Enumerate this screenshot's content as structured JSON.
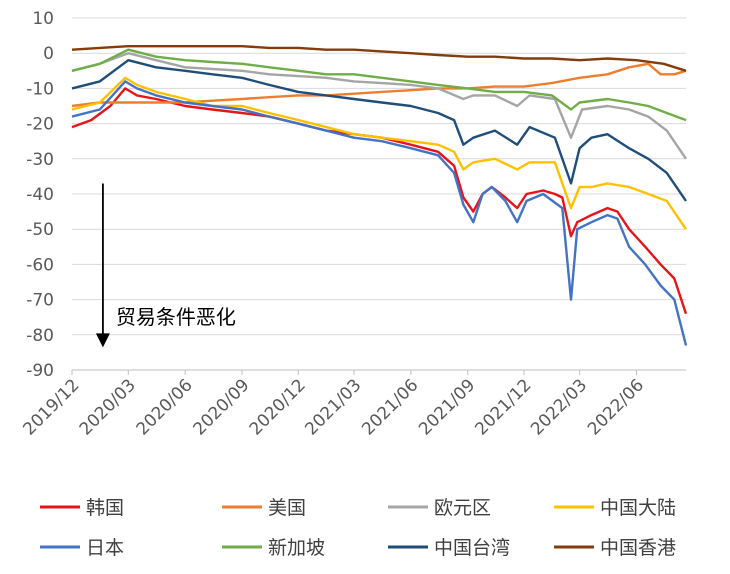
{
  "chart_data": {
    "type": "line",
    "title": "",
    "xlabel": "",
    "ylabel": "",
    "ylim": [
      -90,
      10
    ],
    "yticks": [
      10,
      0,
      -10,
      -20,
      -30,
      -40,
      -50,
      -60,
      -70,
      -80,
      -90
    ],
    "x_range": [
      "2019-12-01",
      "2022-08-20"
    ],
    "xticks": [
      {
        "date": "2019-12-01",
        "label": "2019/12"
      },
      {
        "date": "2020-03-01",
        "label": "2020/03"
      },
      {
        "date": "2020-06-01",
        "label": "2020/06"
      },
      {
        "date": "2020-09-01",
        "label": "2020/09"
      },
      {
        "date": "2020-12-01",
        "label": "2020/12"
      },
      {
        "date": "2021-03-01",
        "label": "2021/03"
      },
      {
        "date": "2021-06-01",
        "label": "2021/06"
      },
      {
        "date": "2021-09-01",
        "label": "2021/09"
      },
      {
        "date": "2021-12-01",
        "label": "2021/12"
      },
      {
        "date": "2022-03-01",
        "label": "2022/03"
      },
      {
        "date": "2022-06-01",
        "label": "2022/06"
      }
    ],
    "grid": "horizontal",
    "legend_position": "bottom",
    "annotation": {
      "text": "贸易条件恶化",
      "arrow": "down",
      "from_y": -37,
      "to_y": -83,
      "date": "2020-01-20"
    },
    "series": [
      {
        "name": "韩国",
        "color": "#E8141B",
        "points": [
          [
            "2019-12-01",
            -21
          ],
          [
            "2020-01-01",
            -19
          ],
          [
            "2020-02-01",
            -15
          ],
          [
            "2020-02-25",
            -10
          ],
          [
            "2020-03-15",
            -12
          ],
          [
            "2020-04-15",
            -13
          ],
          [
            "2020-06-01",
            -15
          ],
          [
            "2020-07-15",
            -16
          ],
          [
            "2020-09-01",
            -17
          ],
          [
            "2020-10-15",
            -18
          ],
          [
            "2020-12-01",
            -20
          ],
          [
            "2021-01-15",
            -22
          ],
          [
            "2021-03-01",
            -23
          ],
          [
            "2021-04-15",
            -24
          ],
          [
            "2021-06-01",
            -26
          ],
          [
            "2021-07-15",
            -28
          ],
          [
            "2021-08-10",
            -32
          ],
          [
            "2021-08-25",
            -41
          ],
          [
            "2021-09-10",
            -45
          ],
          [
            "2021-09-25",
            -40
          ],
          [
            "2021-10-10",
            -38
          ],
          [
            "2021-11-01",
            -41
          ],
          [
            "2021-11-20",
            -44
          ],
          [
            "2021-12-05",
            -40
          ],
          [
            "2022-01-01",
            -39
          ],
          [
            "2022-01-20",
            -40
          ],
          [
            "2022-02-01",
            -41
          ],
          [
            "2022-02-15",
            -52
          ],
          [
            "2022-02-25",
            -48
          ],
          [
            "2022-03-20",
            -46
          ],
          [
            "2022-04-15",
            -44
          ],
          [
            "2022-05-01",
            -45
          ],
          [
            "2022-05-20",
            -50
          ],
          [
            "2022-06-15",
            -55
          ],
          [
            "2022-07-10",
            -60
          ],
          [
            "2022-08-01",
            -64
          ],
          [
            "2022-08-20",
            -74
          ]
        ]
      },
      {
        "name": "美国",
        "color": "#ED7D31",
        "points": [
          [
            "2019-12-01",
            -15
          ],
          [
            "2020-01-15",
            -14
          ],
          [
            "2020-03-01",
            -14
          ],
          [
            "2020-04-15",
            -14
          ],
          [
            "2020-06-01",
            -14
          ],
          [
            "2020-07-15",
            -13.5
          ],
          [
            "2020-09-01",
            -13
          ],
          [
            "2020-10-15",
            -12.5
          ],
          [
            "2020-12-01",
            -12
          ],
          [
            "2021-01-15",
            -12
          ],
          [
            "2021-03-01",
            -11.5
          ],
          [
            "2021-04-15",
            -11
          ],
          [
            "2021-06-01",
            -10.5
          ],
          [
            "2021-07-15",
            -10
          ],
          [
            "2021-09-01",
            -10
          ],
          [
            "2021-10-15",
            -9.5
          ],
          [
            "2021-12-01",
            -9.5
          ],
          [
            "2022-01-15",
            -8.5
          ],
          [
            "2022-03-01",
            -7
          ],
          [
            "2022-04-15",
            -6
          ],
          [
            "2022-05-20",
            -4
          ],
          [
            "2022-06-20",
            -3
          ],
          [
            "2022-07-10",
            -6
          ],
          [
            "2022-08-01",
            -6
          ],
          [
            "2022-08-20",
            -5
          ]
        ]
      },
      {
        "name": "欧元区",
        "color": "#A5A5A5",
        "points": [
          [
            "2019-12-01",
            -5
          ],
          [
            "2020-01-15",
            -3
          ],
          [
            "2020-03-01",
            0
          ],
          [
            "2020-04-15",
            -2
          ],
          [
            "2020-06-01",
            -4
          ],
          [
            "2020-07-15",
            -4.5
          ],
          [
            "2020-09-01",
            -5
          ],
          [
            "2020-10-15",
            -6
          ],
          [
            "2020-12-01",
            -6.5
          ],
          [
            "2021-01-15",
            -7
          ],
          [
            "2021-03-01",
            -8
          ],
          [
            "2021-04-15",
            -8.5
          ],
          [
            "2021-06-01",
            -9
          ],
          [
            "2021-07-15",
            -10
          ],
          [
            "2021-08-25",
            -13
          ],
          [
            "2021-09-10",
            -12
          ],
          [
            "2021-10-15",
            -12
          ],
          [
            "2021-11-20",
            -15
          ],
          [
            "2021-12-10",
            -12
          ],
          [
            "2022-01-20",
            -13
          ],
          [
            "2022-02-15",
            -24
          ],
          [
            "2022-03-05",
            -16
          ],
          [
            "2022-04-15",
            -15
          ],
          [
            "2022-05-20",
            -16
          ],
          [
            "2022-06-20",
            -18
          ],
          [
            "2022-07-20",
            -22
          ],
          [
            "2022-08-20",
            -30
          ]
        ]
      },
      {
        "name": "中国大陆",
        "color": "#FFC000",
        "points": [
          [
            "2019-12-01",
            -16
          ],
          [
            "2020-01-15",
            -14
          ],
          [
            "2020-02-25",
            -7
          ],
          [
            "2020-03-15",
            -9
          ],
          [
            "2020-04-15",
            -11
          ],
          [
            "2020-06-01",
            -13
          ],
          [
            "2020-07-15",
            -15
          ],
          [
            "2020-09-01",
            -15
          ],
          [
            "2020-10-15",
            -17
          ],
          [
            "2020-12-01",
            -19
          ],
          [
            "2021-01-15",
            -21
          ],
          [
            "2021-03-01",
            -23
          ],
          [
            "2021-04-15",
            -24
          ],
          [
            "2021-06-01",
            -25
          ],
          [
            "2021-07-15",
            -26
          ],
          [
            "2021-08-10",
            -28
          ],
          [
            "2021-08-25",
            -33
          ],
          [
            "2021-09-10",
            -31
          ],
          [
            "2021-10-15",
            -30
          ],
          [
            "2021-11-20",
            -33
          ],
          [
            "2021-12-10",
            -31
          ],
          [
            "2022-01-20",
            -31
          ],
          [
            "2022-02-15",
            -44
          ],
          [
            "2022-03-01",
            -38
          ],
          [
            "2022-03-20",
            -38
          ],
          [
            "2022-04-15",
            -37
          ],
          [
            "2022-05-20",
            -38
          ],
          [
            "2022-06-20",
            -40
          ],
          [
            "2022-07-20",
            -42
          ],
          [
            "2022-08-20",
            -50
          ]
        ]
      },
      {
        "name": "日本",
        "color": "#4472C4",
        "points": [
          [
            "2019-12-01",
            -18
          ],
          [
            "2020-01-15",
            -16
          ],
          [
            "2020-02-25",
            -8
          ],
          [
            "2020-03-15",
            -10
          ],
          [
            "2020-04-15",
            -12
          ],
          [
            "2020-06-01",
            -14
          ],
          [
            "2020-07-15",
            -15
          ],
          [
            "2020-09-01",
            -16
          ],
          [
            "2020-10-15",
            -18
          ],
          [
            "2020-12-01",
            -20
          ],
          [
            "2021-01-15",
            -22
          ],
          [
            "2021-03-01",
            -24
          ],
          [
            "2021-04-15",
            -25
          ],
          [
            "2021-06-01",
            -27
          ],
          [
            "2021-07-15",
            -29
          ],
          [
            "2021-08-10",
            -34
          ],
          [
            "2021-08-25",
            -43
          ],
          [
            "2021-09-10",
            -48
          ],
          [
            "2021-09-25",
            -40
          ],
          [
            "2021-10-10",
            -38
          ],
          [
            "2021-11-01",
            -42
          ],
          [
            "2021-11-20",
            -48
          ],
          [
            "2021-12-05",
            -42
          ],
          [
            "2022-01-01",
            -40
          ],
          [
            "2022-02-01",
            -44
          ],
          [
            "2022-02-15",
            -70
          ],
          [
            "2022-02-25",
            -50
          ],
          [
            "2022-03-20",
            -48
          ],
          [
            "2022-04-15",
            -46
          ],
          [
            "2022-05-01",
            -47
          ],
          [
            "2022-05-20",
            -55
          ],
          [
            "2022-06-15",
            -60
          ],
          [
            "2022-07-10",
            -66
          ],
          [
            "2022-08-01",
            -70
          ],
          [
            "2022-08-20",
            -83
          ]
        ]
      },
      {
        "name": "新加坡",
        "color": "#70AD47",
        "points": [
          [
            "2019-12-01",
            -5
          ],
          [
            "2020-01-15",
            -3
          ],
          [
            "2020-03-01",
            1
          ],
          [
            "2020-04-15",
            -1
          ],
          [
            "2020-06-01",
            -2
          ],
          [
            "2020-07-15",
            -2.5
          ],
          [
            "2020-09-01",
            -3
          ],
          [
            "2020-10-15",
            -4
          ],
          [
            "2020-12-01",
            -5
          ],
          [
            "2021-01-15",
            -6
          ],
          [
            "2021-03-01",
            -6
          ],
          [
            "2021-04-15",
            -7
          ],
          [
            "2021-06-01",
            -8
          ],
          [
            "2021-07-15",
            -9
          ],
          [
            "2021-09-01",
            -10
          ],
          [
            "2021-10-15",
            -11
          ],
          [
            "2021-12-01",
            -11
          ],
          [
            "2022-01-15",
            -12
          ],
          [
            "2022-02-15",
            -16
          ],
          [
            "2022-03-01",
            -14
          ],
          [
            "2022-04-15",
            -13
          ],
          [
            "2022-05-20",
            -14
          ],
          [
            "2022-06-20",
            -15
          ],
          [
            "2022-07-20",
            -17
          ],
          [
            "2022-08-20",
            -19
          ]
        ]
      },
      {
        "name": "中国台湾",
        "color": "#1F4E79",
        "points": [
          [
            "2019-12-01",
            -10
          ],
          [
            "2020-01-15",
            -8
          ],
          [
            "2020-03-01",
            -2
          ],
          [
            "2020-04-15",
            -4
          ],
          [
            "2020-06-01",
            -5
          ],
          [
            "2020-07-15",
            -6
          ],
          [
            "2020-09-01",
            -7
          ],
          [
            "2020-10-15",
            -9
          ],
          [
            "2020-12-01",
            -11
          ],
          [
            "2021-01-15",
            -12
          ],
          [
            "2021-03-01",
            -13
          ],
          [
            "2021-04-15",
            -14
          ],
          [
            "2021-06-01",
            -15
          ],
          [
            "2021-07-15",
            -17
          ],
          [
            "2021-08-10",
            -19
          ],
          [
            "2021-08-25",
            -26
          ],
          [
            "2021-09-10",
            -24
          ],
          [
            "2021-10-15",
            -22
          ],
          [
            "2021-11-20",
            -26
          ],
          [
            "2021-12-10",
            -21
          ],
          [
            "2022-01-20",
            -24
          ],
          [
            "2022-02-15",
            -37
          ],
          [
            "2022-03-01",
            -27
          ],
          [
            "2022-03-20",
            -24
          ],
          [
            "2022-04-15",
            -23
          ],
          [
            "2022-05-20",
            -27
          ],
          [
            "2022-06-20",
            -30
          ],
          [
            "2022-07-20",
            -34
          ],
          [
            "2022-08-20",
            -42
          ]
        ]
      },
      {
        "name": "中国香港",
        "color": "#843C0C",
        "points": [
          [
            "2019-12-01",
            1
          ],
          [
            "2020-01-15",
            1.5
          ],
          [
            "2020-03-01",
            2
          ],
          [
            "2020-04-15",
            2
          ],
          [
            "2020-06-01",
            2
          ],
          [
            "2020-07-15",
            2
          ],
          [
            "2020-09-01",
            2
          ],
          [
            "2020-10-15",
            1.5
          ],
          [
            "2020-12-01",
            1.5
          ],
          [
            "2021-01-15",
            1
          ],
          [
            "2021-03-01",
            1
          ],
          [
            "2021-04-15",
            0.5
          ],
          [
            "2021-06-01",
            0
          ],
          [
            "2021-07-15",
            -0.5
          ],
          [
            "2021-09-01",
            -1
          ],
          [
            "2021-10-15",
            -1
          ],
          [
            "2021-12-01",
            -1.5
          ],
          [
            "2022-01-15",
            -1.5
          ],
          [
            "2022-03-01",
            -2
          ],
          [
            "2022-04-15",
            -1.5
          ],
          [
            "2022-06-01",
            -2
          ],
          [
            "2022-07-15",
            -3
          ],
          [
            "2022-08-20",
            -5
          ]
        ]
      }
    ]
  }
}
